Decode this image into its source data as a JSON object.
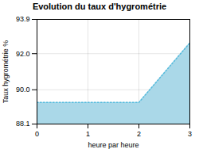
{
  "chart_data": {
    "type": "area",
    "title": "Evolution du taux d'hygrométrie",
    "xlabel": "heure par heure",
    "ylabel": "Taux hygrométrie %",
    "x": [
      0,
      2,
      3
    ],
    "series": [
      {
        "type": "area",
        "color": "#aad8e8",
        "values": [
          89.3,
          89.3,
          92.6
        ]
      },
      {
        "type": "line",
        "color": "#55bbdd",
        "line_style": "dotted",
        "values": [
          89.3,
          89.3,
          92.6
        ]
      }
    ],
    "xlim": [
      0,
      3
    ],
    "xticks": [
      0,
      1,
      2,
      3
    ],
    "ylim": [
      88.1,
      93.9
    ],
    "yticks": [
      88.1,
      {
        "value": 90.0,
        "label": "90.0"
      },
      {
        "value": 92.0,
        "label": "92.0"
      },
      93.9
    ],
    "grid": true
  }
}
